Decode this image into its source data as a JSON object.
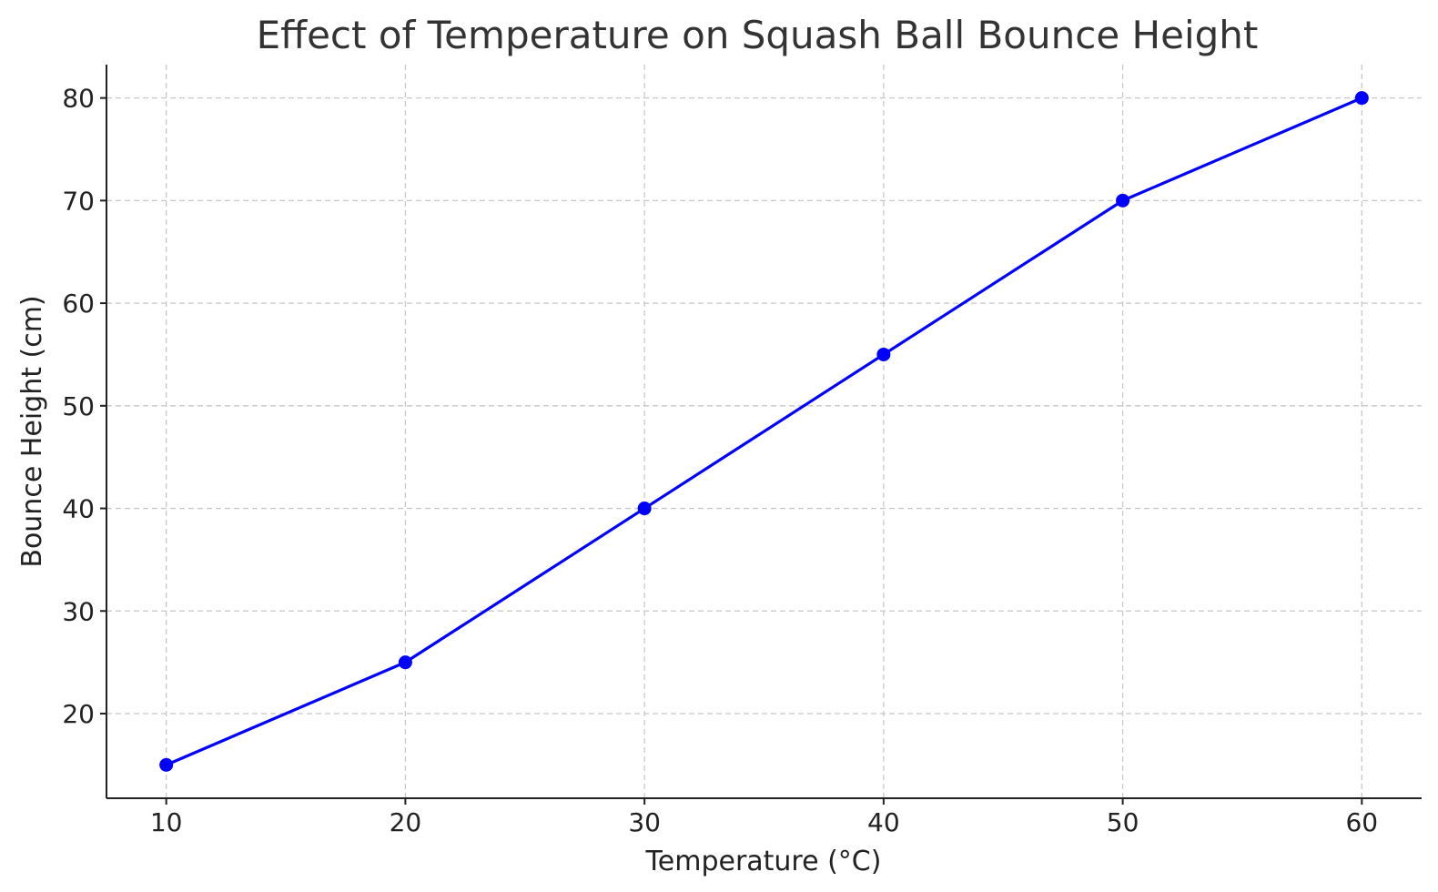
{
  "chart_data": {
    "type": "line",
    "title": "Effect of Temperature on Squash Ball Bounce Height",
    "xlabel": "Temperature (°C)",
    "ylabel": "Bounce Height (cm)",
    "x": [
      10,
      20,
      30,
      40,
      50,
      60
    ],
    "series": [
      {
        "values": [
          15,
          25,
          40,
          55,
          70,
          80
        ],
        "color": "#0000ff",
        "marker": "circle"
      }
    ],
    "xticks": [
      10,
      20,
      30,
      40,
      50,
      60
    ],
    "yticks": [
      20,
      30,
      40,
      50,
      60,
      70,
      80
    ],
    "xlim": [
      7.5,
      62.5
    ],
    "ylim": [
      11.75,
      83.25
    ],
    "grid": true,
    "legend": "none"
  }
}
